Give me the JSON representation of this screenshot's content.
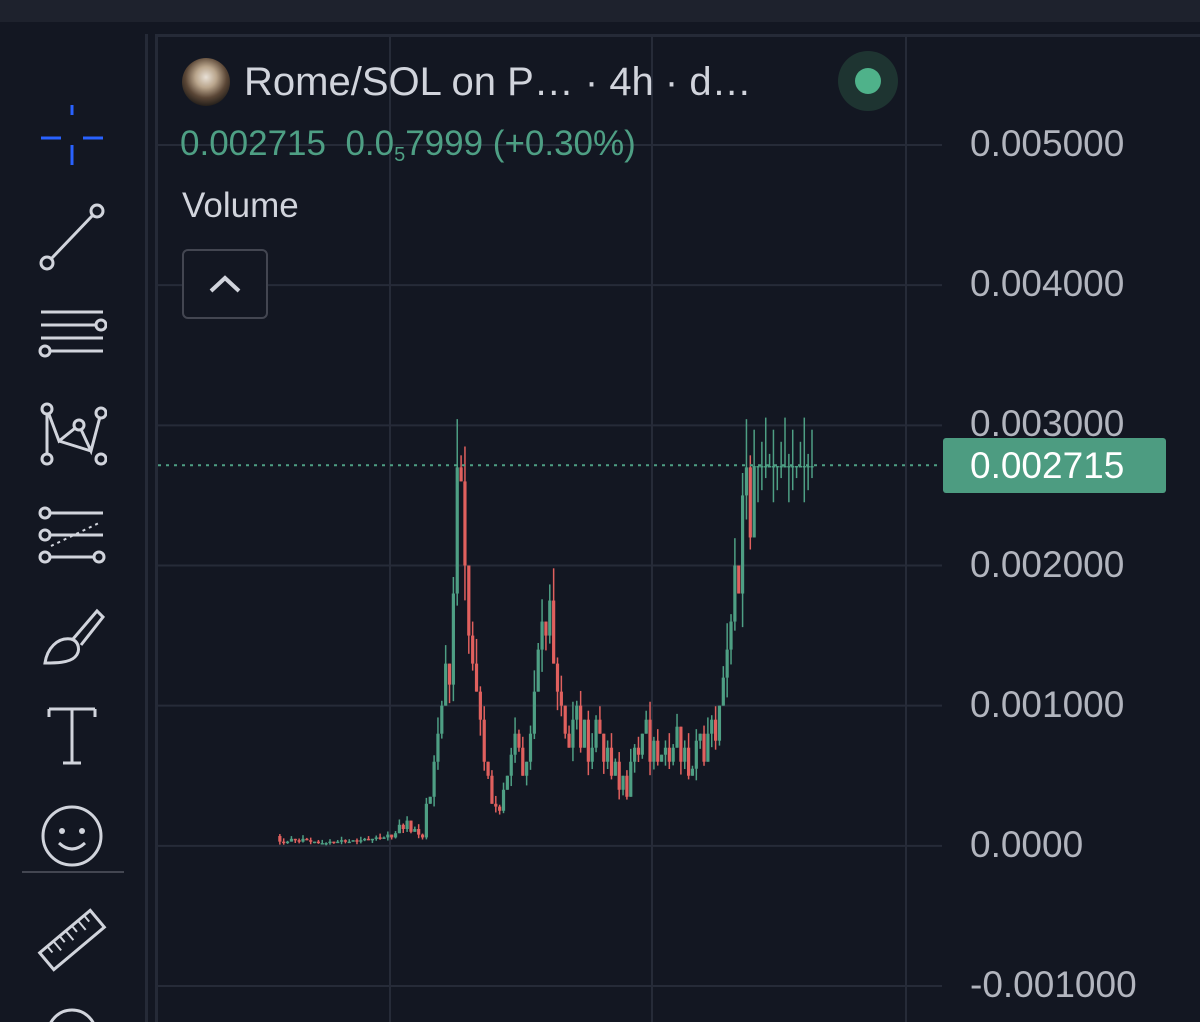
{
  "header": {
    "title": "Rome/SOL on P…  · 4h · d…",
    "status": "online"
  },
  "legend": {
    "price": "0.002715",
    "change_prefix": "0.0",
    "change_sub": "5",
    "change_rest": "7999 (+0.30%)",
    "volume_label": "Volume"
  },
  "colors": {
    "background": "#131722",
    "up": "#4e9f84",
    "down": "#e0605e",
    "grid": "#262b38",
    "accent": "#2962ff"
  },
  "toolbar": {
    "tools": [
      "crosshair-icon",
      "trend-line-icon",
      "horizontal-lines-icon",
      "pattern-icon",
      "fib-icon",
      "brush-icon",
      "text-icon",
      "emoji-icon",
      "ruler-icon"
    ]
  },
  "chart_data": {
    "type": "line",
    "title": "Rome/SOL on P…  · 4h · d…",
    "xlabel": "",
    "ylabel": "",
    "ylim": [
      -0.001,
      0.005
    ],
    "y_ticks": [
      "0.005000",
      "0.004000",
      "0.003000",
      "0.002000",
      "0.001000",
      "0.0000",
      "-0.001000"
    ],
    "last_price": "0.002715",
    "x": [
      0,
      2,
      4,
      6,
      8,
      10,
      12,
      14,
      16,
      18,
      20,
      22,
      24,
      26,
      28,
      30,
      32,
      34,
      36,
      38,
      40,
      42,
      44,
      46,
      48,
      50,
      52,
      54,
      56,
      58,
      60,
      62,
      64,
      66,
      68,
      70,
      72,
      74,
      76,
      78,
      80,
      82,
      84,
      86,
      88,
      90,
      92,
      94,
      96,
      98,
      100,
      102,
      104,
      106,
      108,
      110,
      112,
      114,
      116,
      118,
      120,
      122,
      124,
      126,
      128,
      130,
      132,
      134,
      136,
      138,
      140,
      142,
      144,
      146,
      148,
      150,
      152,
      154,
      156,
      158,
      160,
      162,
      164,
      166,
      168,
      170,
      172,
      174,
      176,
      178,
      180,
      182,
      184,
      186,
      188,
      190,
      192,
      194,
      196,
      198,
      200,
      202,
      204,
      206,
      208,
      210,
      212,
      214,
      216,
      218,
      220,
      222,
      224,
      226,
      228,
      230,
      232,
      234,
      236,
      238,
      240,
      242,
      244,
      246,
      248,
      250,
      252,
      254,
      256,
      258,
      260,
      262,
      264,
      266,
      268,
      270,
      272,
      274,
      276,
      278
    ],
    "series": [
      {
        "values": [
          7e-05,
          3e-05,
          2e-05,
          3e-05,
          5e-05,
          4e-05,
          3e-05,
          5e-05,
          4e-05,
          3e-05,
          3e-05,
          2e-05,
          2e-05,
          2e-05,
          3e-05,
          2e-05,
          3e-05,
          4e-05,
          3e-05,
          3e-05,
          4e-05,
          3e-05,
          4e-05,
          5e-05,
          4e-05,
          5e-05,
          6e-05,
          5e-05,
          6e-05,
          8e-05,
          6e-05,
          9e-05,
          0.00015,
          0.00012,
          0.00018,
          0.0001,
          0.00012,
          8e-05,
          6e-05,
          0.0003,
          0.00035,
          0.0006,
          0.0008,
          0.001,
          0.0013,
          0.00115,
          0.0018,
          0.0027,
          0.0026,
          0.002,
          0.0015,
          0.0013,
          0.0011,
          0.0009,
          0.0006,
          0.0005,
          0.0003,
          0.00028,
          0.00025,
          0.0004,
          0.0005,
          0.00065,
          0.0008,
          0.0007,
          0.0005,
          0.0006,
          0.0008,
          0.0011,
          0.0014,
          0.0016,
          0.0015,
          0.00175,
          0.0013,
          0.0011,
          0.001,
          0.0008,
          0.0007,
          0.0009,
          0.001,
          0.0007,
          0.0009,
          0.0006,
          0.0007,
          0.0009,
          0.0008,
          0.0006,
          0.0007,
          0.0005,
          0.0006,
          0.0004,
          0.0005,
          0.00035,
          0.0006,
          0.0007,
          0.00065,
          0.0008,
          0.0009,
          0.0006,
          0.00075,
          0.0006,
          0.00065,
          0.0007,
          0.0006,
          0.0007,
          0.00085,
          0.0006,
          0.0007,
          0.0005,
          0.00055,
          0.00075,
          0.0008,
          0.0006,
          0.0008,
          0.0009,
          0.00075,
          0.001,
          0.0012,
          0.0014,
          0.0016,
          0.002,
          0.0018,
          0.0025,
          0.0027,
          0.0022,
          0.00271,
          0.00271,
          0.00271,
          0.00271,
          0.00271,
          0.00271,
          0.00271,
          0.00271,
          0.00271,
          0.00271,
          0.00271,
          0.00271,
          0.00271,
          0.00271,
          0.00271,
          0.00271
        ]
      }
    ]
  }
}
